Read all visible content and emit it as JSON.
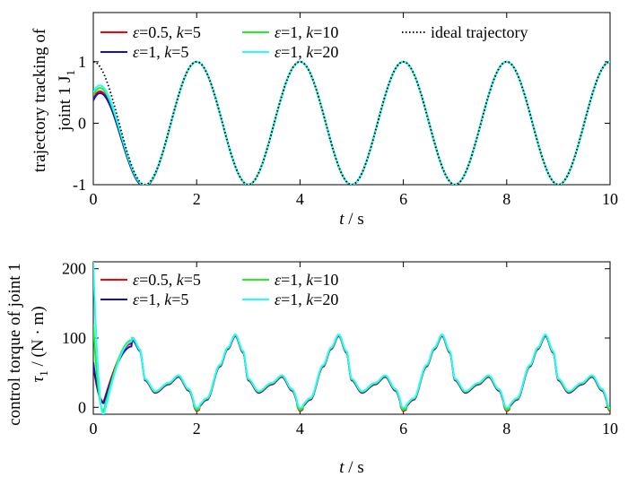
{
  "chart_data": [
    {
      "type": "line",
      "xlabel": "t / s",
      "ylabel_line1": "trajectory tracking of",
      "ylabel_line2": "joint 1 J",
      "ylabel_sub": "1",
      "xlim": [
        0,
        10
      ],
      "ylim": [
        -1,
        1.8
      ],
      "xticks": [
        0,
        2,
        4,
        6,
        8,
        10
      ],
      "yticks": [
        -1,
        0,
        1
      ],
      "grid": false,
      "legend": "top, two rows inside plot",
      "ideal": {
        "name": "ideal trajectory",
        "color": "#000000",
        "style": "dotted",
        "formula": "cos(pi * t)"
      },
      "series": [
        {
          "name": "ε=0.5, k=5",
          "eps": "ε",
          "epsval": "=0.5, ",
          "k": "k",
          "kval": "=5",
          "color": "#ff0000",
          "y0": 0.4,
          "tau": 0.32
        },
        {
          "name": "ε=1, k=5",
          "eps": "ε",
          "epsval": "=1, ",
          "k": "k",
          "kval": "=5",
          "color": "#1010c8",
          "y0": 0.37,
          "tau": 0.34
        },
        {
          "name": "ε=1, k=10",
          "eps": "ε",
          "epsval": "=1, ",
          "k": "k",
          "kval": "=10",
          "color": "#22ee22",
          "y0": 0.45,
          "tau": 0.28
        },
        {
          "name": "ε=1, k=20",
          "eps": "ε",
          "epsval": "=1, ",
          "k": "k",
          "kval": "=20",
          "color": "#22ffff",
          "y0": 0.5,
          "tau": 0.26
        }
      ]
    },
    {
      "type": "line",
      "xlabel": "t / s",
      "ylabel_line1": "control torque of joint 1",
      "ylabel_line2": "τ",
      "ylabel_sub": "1",
      "ylabel_unit": " / (N · m)",
      "xlim": [
        0,
        10
      ],
      "ylim": [
        -10,
        210
      ],
      "xticks": [
        0,
        2,
        4,
        6,
        8,
        10
      ],
      "yticks": [
        0,
        100,
        200
      ],
      "grid": false,
      "legend": "top-left, two rows",
      "periodic_profile": {
        "period": 2,
        "points_t": [
          0.0,
          0.2,
          0.45,
          0.6,
          0.75,
          0.9,
          1.0,
          1.2,
          1.45,
          1.65,
          1.85,
          2.0
        ],
        "points_y": [
          0,
          12,
          60,
          85,
          104,
          80,
          40,
          22,
          34,
          45,
          25,
          0
        ]
      },
      "series": [
        {
          "name": "ε=0.5, k=5",
          "eps": "ε",
          "epsval": "=0.5, ",
          "k": "k",
          "kval": "=5",
          "color": "#ff0000",
          "start": 60,
          "dip": 8,
          "peak1": 92
        },
        {
          "name": "ε=1, k=5",
          "eps": "ε",
          "epsval": "=1, ",
          "k": "k",
          "kval": "=5",
          "color": "#1010c8",
          "start": 65,
          "dip": 6,
          "peak1": 88
        },
        {
          "name": "ε=1, k=10",
          "eps": "ε",
          "epsval": "=1, ",
          "k": "k",
          "kval": "=10",
          "color": "#22ee22",
          "start": 120,
          "dip": -6,
          "peak1": 97
        },
        {
          "name": "ε=1, k=20",
          "eps": "ε",
          "epsval": "=1, ",
          "k": "k",
          "kval": "=20",
          "color": "#22ffff",
          "start": 210,
          "dip": -12,
          "peak1": 95
        }
      ]
    }
  ]
}
